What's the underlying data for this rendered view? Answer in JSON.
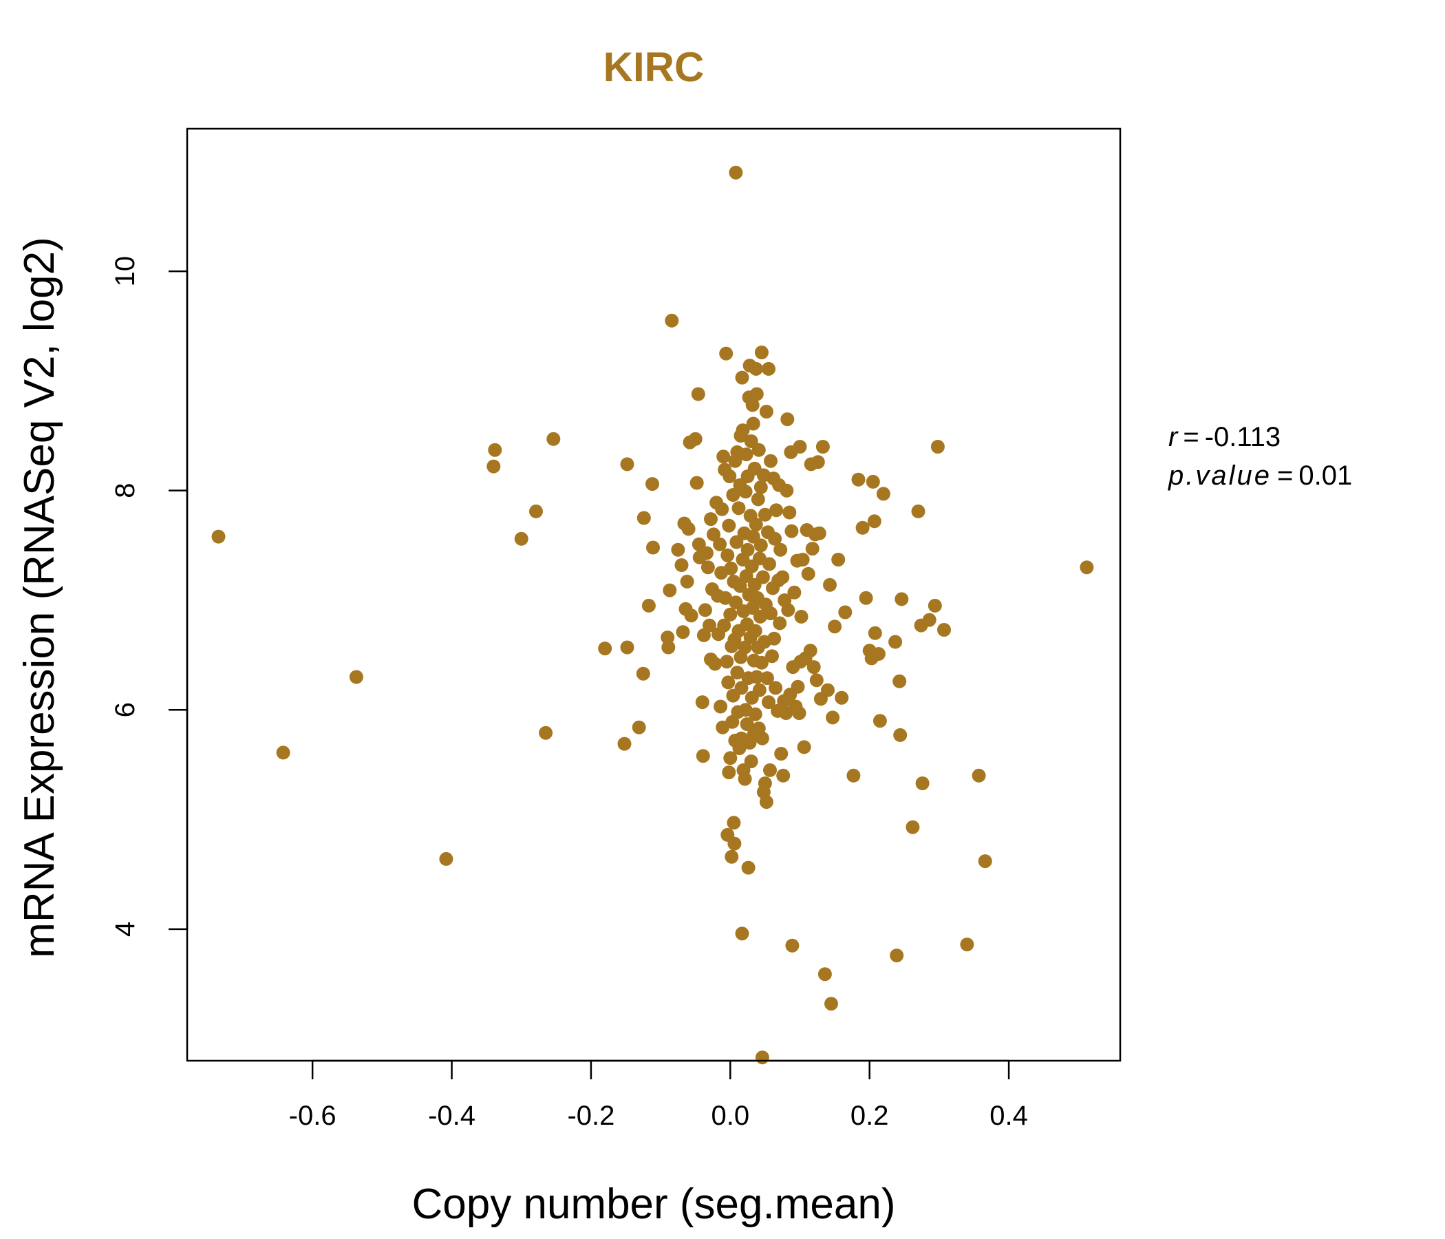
{
  "chart_data": {
    "type": "scatter",
    "title": "KIRC",
    "xlabel": "Copy number (seg.mean)",
    "ylabel": "mRNA Expression (RNASeq V2, log2)",
    "xlim": [
      -0.78,
      0.56
    ],
    "ylim": [
      2.8,
      11.3
    ],
    "x_ticks": [
      -0.6,
      -0.4,
      -0.2,
      0.0,
      0.2,
      0.4
    ],
    "x_tick_labels": [
      "-0.6",
      "-0.4",
      "-0.2",
      "0.0",
      "0.2",
      "0.4"
    ],
    "y_ticks": [
      4,
      6,
      8,
      10
    ],
    "y_tick_labels": [
      "4",
      "6",
      "8",
      "10"
    ],
    "grid": false,
    "legend": "none",
    "color": "#A67720",
    "stats": {
      "r_label": "r",
      "r_value": "-0.113",
      "p_label": "p.value",
      "p_value": "0.01"
    },
    "points": [
      [
        -0.735,
        7.58
      ],
      [
        -0.642,
        5.61
      ],
      [
        -0.537,
        6.3
      ],
      [
        -0.408,
        4.64
      ],
      [
        -0.34,
        8.22
      ],
      [
        -0.338,
        8.37
      ],
      [
        -0.3,
        7.56
      ],
      [
        -0.279,
        7.81
      ],
      [
        -0.265,
        5.79
      ],
      [
        -0.254,
        8.47
      ],
      [
        -0.18,
        6.56
      ],
      [
        -0.152,
        5.69
      ],
      [
        -0.148,
        8.24
      ],
      [
        -0.148,
        6.57
      ],
      [
        -0.131,
        5.84
      ],
      [
        -0.125,
        6.33
      ],
      [
        -0.124,
        7.75
      ],
      [
        -0.117,
        6.95
      ],
      [
        -0.112,
        8.06
      ],
      [
        -0.111,
        7.48
      ],
      [
        -0.09,
        6.66
      ],
      [
        -0.089,
        6.57
      ],
      [
        -0.087,
        7.09
      ],
      [
        -0.084,
        9.55
      ],
      [
        -0.075,
        7.46
      ],
      [
        -0.07,
        7.32
      ],
      [
        -0.068,
        6.71
      ],
      [
        -0.066,
        7.7
      ],
      [
        -0.064,
        6.92
      ],
      [
        -0.062,
        7.17
      ],
      [
        -0.06,
        7.65
      ],
      [
        -0.058,
        8.44
      ],
      [
        -0.056,
        6.86
      ],
      [
        -0.05,
        8.47
      ],
      [
        -0.048,
        8.07
      ],
      [
        -0.046,
        8.88
      ],
      [
        -0.045,
        7.51
      ],
      [
        -0.044,
        7.39
      ],
      [
        -0.04,
        6.07
      ],
      [
        -0.039,
        5.58
      ],
      [
        -0.038,
        6.68
      ],
      [
        -0.036,
        6.91
      ],
      [
        -0.034,
        7.43
      ],
      [
        -0.032,
        7.3
      ],
      [
        -0.03,
        6.77
      ],
      [
        -0.028,
        7.74
      ],
      [
        -0.028,
        6.46
      ],
      [
        -0.026,
        7.1
      ],
      [
        -0.024,
        7.6
      ],
      [
        -0.022,
        6.42
      ],
      [
        -0.02,
        7.89
      ],
      [
        -0.018,
        7.04
      ],
      [
        -0.017,
        6.69
      ],
      [
        -0.015,
        7.51
      ],
      [
        -0.014,
        6.03
      ],
      [
        -0.013,
        7.25
      ],
      [
        -0.012,
        7.83
      ],
      [
        -0.011,
        5.84
      ],
      [
        -0.01,
        8.31
      ],
      [
        -0.009,
        6.77
      ],
      [
        -0.008,
        8.19
      ],
      [
        -0.007,
        7.02
      ],
      [
        -0.006,
        9.25
      ],
      [
        -0.005,
        6.44
      ],
      [
        -0.004,
        7.41
      ],
      [
        -0.004,
        4.86
      ],
      [
        -0.003,
        6.25
      ],
      [
        -0.002,
        5.43
      ],
      [
        -0.002,
        7.68
      ],
      [
        -0.001,
        8.13
      ],
      [
        0.0,
        6.87
      ],
      [
        0.0,
        5.56
      ],
      [
        0.001,
        7.29
      ],
      [
        0.002,
        6.58
      ],
      [
        0.002,
        4.66
      ],
      [
        0.003,
        5.89
      ],
      [
        0.004,
        7.96
      ],
      [
        0.004,
        6.13
      ],
      [
        0.005,
        4.97
      ],
      [
        0.005,
        7.17
      ],
      [
        0.006,
        6.64
      ],
      [
        0.006,
        4.78
      ],
      [
        0.007,
        5.72
      ],
      [
        0.007,
        8.27
      ],
      [
        0.008,
        6.98
      ],
      [
        0.008,
        10.9
      ],
      [
        0.009,
        7.53
      ],
      [
        0.01,
        6.34
      ],
      [
        0.01,
        8.35
      ],
      [
        0.011,
        5.98
      ],
      [
        0.012,
        7.84
      ],
      [
        0.012,
        6.72
      ],
      [
        0.013,
        5.65
      ],
      [
        0.014,
        8.05
      ],
      [
        0.014,
        7.13
      ],
      [
        0.015,
        8.5
      ],
      [
        0.015,
        6.48
      ],
      [
        0.016,
        6.2
      ],
      [
        0.016,
        5.74
      ],
      [
        0.017,
        3.96
      ],
      [
        0.017,
        9.03
      ],
      [
        0.018,
        7.37
      ],
      [
        0.018,
        8.55
      ],
      [
        0.019,
        6.9
      ],
      [
        0.019,
        5.45
      ],
      [
        0.02,
        7.61
      ],
      [
        0.021,
        6.57
      ],
      [
        0.021,
        5.37
      ],
      [
        0.022,
        7.99
      ],
      [
        0.022,
        6.0
      ],
      [
        0.023,
        7.22
      ],
      [
        0.023,
        8.33
      ],
      [
        0.024,
        5.87
      ],
      [
        0.024,
        6.78
      ],
      [
        0.025,
        8.13
      ],
      [
        0.025,
        7.46
      ],
      [
        0.026,
        6.29
      ],
      [
        0.026,
        4.56
      ],
      [
        0.027,
        8.85
      ],
      [
        0.027,
        7.05
      ],
      [
        0.028,
        5.7
      ],
      [
        0.028,
        9.14
      ],
      [
        0.029,
        6.66
      ],
      [
        0.029,
        7.77
      ],
      [
        0.03,
        8.45
      ],
      [
        0.03,
        5.53
      ],
      [
        0.031,
        7.31
      ],
      [
        0.031,
        6.11
      ],
      [
        0.032,
        8.78
      ],
      [
        0.032,
        6.93
      ],
      [
        0.033,
        7.58
      ],
      [
        0.033,
        8.61
      ],
      [
        0.034,
        5.78
      ],
      [
        0.034,
        6.45
      ],
      [
        0.035,
        8.2
      ],
      [
        0.035,
        7.14
      ],
      [
        0.036,
        6.72
      ],
      [
        0.036,
        5.96
      ],
      [
        0.037,
        7.69
      ],
      [
        0.037,
        9.11
      ],
      [
        0.038,
        6.3
      ],
      [
        0.038,
        8.88
      ],
      [
        0.039,
        7.02
      ],
      [
        0.04,
        6.57
      ],
      [
        0.04,
        7.92
      ],
      [
        0.041,
        5.83
      ],
      [
        0.041,
        8.37
      ],
      [
        0.042,
        7.38
      ],
      [
        0.042,
        6.18
      ],
      [
        0.043,
        6.85
      ],
      [
        0.044,
        8.03
      ],
      [
        0.044,
        7.5
      ],
      [
        0.045,
        6.43
      ],
      [
        0.045,
        9.26
      ],
      [
        0.046,
        5.74
      ],
      [
        0.046,
        2.83
      ],
      [
        0.047,
        7.21
      ],
      [
        0.048,
        5.25
      ],
      [
        0.048,
        8.14
      ],
      [
        0.049,
        6.62
      ],
      [
        0.05,
        7.78
      ],
      [
        0.05,
        5.33
      ],
      [
        0.051,
        6.96
      ],
      [
        0.052,
        8.72
      ],
      [
        0.052,
        5.16
      ],
      [
        0.053,
        6.29
      ],
      [
        0.054,
        7.62
      ],
      [
        0.055,
        9.11
      ],
      [
        0.055,
        6.07
      ],
      [
        0.056,
        7.33
      ],
      [
        0.057,
        5.45
      ],
      [
        0.058,
        8.27
      ],
      [
        0.058,
        6.88
      ],
      [
        0.06,
        6.49
      ],
      [
        0.061,
        7.11
      ],
      [
        0.062,
        8.11
      ],
      [
        0.063,
        6.65
      ],
      [
        0.064,
        7.56
      ],
      [
        0.065,
        6.2
      ],
      [
        0.066,
        7.82
      ],
      [
        0.068,
        5.99
      ],
      [
        0.069,
        7.18
      ],
      [
        0.07,
        8.05
      ],
      [
        0.071,
        6.79
      ],
      [
        0.072,
        7.46
      ],
      [
        0.073,
        5.6
      ],
      [
        0.075,
        7.21
      ],
      [
        0.076,
        5.4
      ],
      [
        0.077,
        6.08
      ],
      [
        0.078,
        7.0
      ],
      [
        0.08,
        5.97
      ],
      [
        0.081,
        8.0
      ],
      [
        0.082,
        8.65
      ],
      [
        0.083,
        6.91
      ],
      [
        0.085,
        7.8
      ],
      [
        0.086,
        6.14
      ],
      [
        0.087,
        8.35
      ],
      [
        0.088,
        7.63
      ],
      [
        0.089,
        3.85
      ],
      [
        0.09,
        6.39
      ],
      [
        0.092,
        7.07
      ],
      [
        0.094,
        6.03
      ],
      [
        0.096,
        7.36
      ],
      [
        0.097,
        6.21
      ],
      [
        0.099,
        5.97
      ],
      [
        0.1,
        8.4
      ],
      [
        0.101,
        6.44
      ],
      [
        0.102,
        6.85
      ],
      [
        0.104,
        7.37
      ],
      [
        0.106,
        5.66
      ],
      [
        0.108,
        6.47
      ],
      [
        0.11,
        7.64
      ],
      [
        0.112,
        7.24
      ],
      [
        0.115,
        6.54
      ],
      [
        0.116,
        8.24
      ],
      [
        0.118,
        7.47
      ],
      [
        0.12,
        6.39
      ],
      [
        0.122,
        7.6
      ],
      [
        0.124,
        6.27
      ],
      [
        0.126,
        8.26
      ],
      [
        0.128,
        7.61
      ],
      [
        0.13,
        6.1
      ],
      [
        0.133,
        8.4
      ],
      [
        0.136,
        3.59
      ],
      [
        0.14,
        6.18
      ],
      [
        0.143,
        7.14
      ],
      [
        0.145,
        3.32
      ],
      [
        0.147,
        5.93
      ],
      [
        0.15,
        6.76
      ],
      [
        0.155,
        7.37
      ],
      [
        0.16,
        6.11
      ],
      [
        0.165,
        6.89
      ],
      [
        0.177,
        5.4
      ],
      [
        0.184,
        8.1
      ],
      [
        0.19,
        7.66
      ],
      [
        0.195,
        7.02
      ],
      [
        0.2,
        6.54
      ],
      [
        0.203,
        6.47
      ],
      [
        0.205,
        8.08
      ],
      [
        0.207,
        7.72
      ],
      [
        0.208,
        6.7
      ],
      [
        0.213,
        6.51
      ],
      [
        0.215,
        5.9
      ],
      [
        0.22,
        7.97
      ],
      [
        0.237,
        6.62
      ],
      [
        0.239,
        3.76
      ],
      [
        0.243,
        6.26
      ],
      [
        0.244,
        5.77
      ],
      [
        0.246,
        7.01
      ],
      [
        0.262,
        4.93
      ],
      [
        0.27,
        7.81
      ],
      [
        0.274,
        6.77
      ],
      [
        0.276,
        5.33
      ],
      [
        0.286,
        6.82
      ],
      [
        0.294,
        6.95
      ],
      [
        0.298,
        8.4
      ],
      [
        0.307,
        6.73
      ],
      [
        0.34,
        3.86
      ],
      [
        0.357,
        5.4
      ],
      [
        0.366,
        4.62
      ],
      [
        0.512,
        7.3
      ]
    ]
  }
}
